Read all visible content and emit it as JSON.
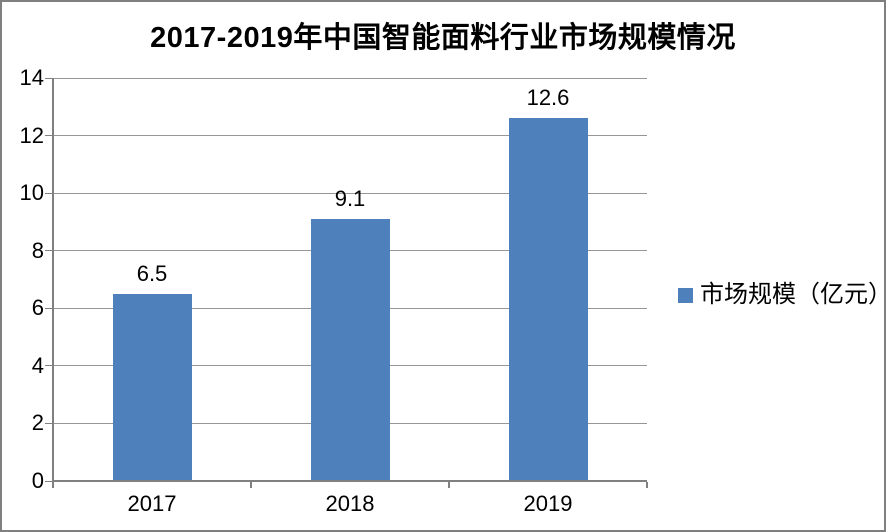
{
  "chart_data": {
    "type": "bar",
    "title": "2017-2019年中国智能面料行业市场规模情况",
    "categories": [
      "2017",
      "2018",
      "2019"
    ],
    "series": [
      {
        "name": "市场规模（亿元）",
        "values": [
          6.5,
          9.1,
          12.6
        ]
      }
    ],
    "value_labels": [
      "6.5",
      "9.1",
      "12.6"
    ],
    "xlabel": "",
    "ylabel": "",
    "ylim": [
      0,
      14
    ],
    "ytick_step": 2,
    "yticks": [
      0,
      2,
      4,
      6,
      8,
      10,
      12,
      14
    ],
    "grid": true,
    "legend_position": "right",
    "colors": {
      "bar": "#4e81bc",
      "gridline": "#969696",
      "axis": "#808080",
      "border": "#7f7f7f",
      "text": "#000000"
    }
  }
}
